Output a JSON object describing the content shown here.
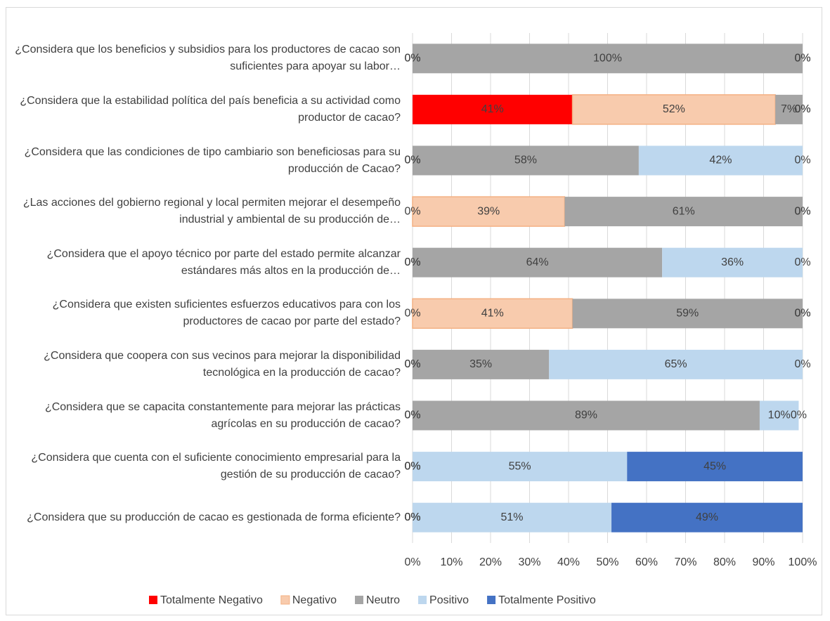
{
  "chart_data": {
    "type": "stacked-bar-horizontal",
    "categories": [
      "¿Considera que los beneficios y subsidios para los productores de cacao son suficientes para apoyar su labor…",
      "¿Considera que la estabilidad política del país beneficia a su actividad como productor de cacao?",
      "¿Considera que las condiciones de tipo cambiario son beneficiosas para su producción de Cacao?",
      "¿Las acciones del gobierno regional y local permiten mejorar el desempeño industrial y ambiental de su producción de…",
      "¿Considera que el apoyo técnico por parte del estado permite alcanzar estándares más altos en la producción de…",
      "¿Considera que existen suficientes esfuerzos educativos para con los productores de cacao por parte del estado?",
      "¿Considera que coopera con sus vecinos para mejorar la disponibilidad tecnológica en la producción de cacao?",
      "¿Considera que se capacita constantemente para mejorar las prácticas agrícolas en su producción de cacao?",
      "¿Considera que cuenta con el suficiente conocimiento empresarial para la gestión de su producción de cacao?",
      "¿Considera que su producción de cacao es gestionada de forma eficiente?"
    ],
    "series": [
      {
        "name": "Totalmente Negativo",
        "color": "#ff0000",
        "values": [
          0,
          41,
          0,
          0,
          0,
          0,
          0,
          0,
          0,
          0
        ],
        "value_labels": [
          "0%",
          "41%",
          "0%",
          "0%",
          "0%",
          "0%",
          "0%",
          "0%",
          "0%",
          "0%"
        ]
      },
      {
        "name": "Negativo",
        "color": "#f8cbad",
        "values": [
          0,
          52,
          0,
          39,
          0,
          41,
          0,
          0,
          0,
          0
        ],
        "value_labels": [
          "0%",
          "52%",
          "0%",
          "39%",
          "0%",
          "41%",
          "0%",
          "0%",
          "0%",
          "0%"
        ]
      },
      {
        "name": "Neutro",
        "color": "#a5a5a5",
        "values": [
          100,
          7,
          58,
          61,
          64,
          59,
          35,
          89,
          0,
          0
        ],
        "value_labels": [
          "100%",
          "7%",
          "58%",
          "61%",
          "64%",
          "59%",
          "35%",
          "89%",
          "0%",
          "0%"
        ]
      },
      {
        "name": "Positivo",
        "color": "#bdd7ee",
        "values": [
          0,
          0,
          42,
          0,
          36,
          0,
          65,
          10,
          55,
          51
        ],
        "value_labels": [
          "0%",
          "0%",
          "42%",
          "0%",
          "36%",
          "0%",
          "65%",
          "10%",
          "55%",
          "51%"
        ]
      },
      {
        "name": "Totalmente Positivo",
        "color": "#4472c4",
        "values": [
          0,
          0,
          0,
          0,
          0,
          0,
          0,
          0,
          45,
          49
        ],
        "value_labels": [
          "0%",
          "0%",
          "0%",
          "0%",
          "0%",
          "0%",
          "0%",
          "0%",
          "45%",
          "49%"
        ]
      }
    ],
    "xlim": [
      0,
      100
    ],
    "xticks": [
      {
        "value": 0,
        "label": "0%"
      },
      {
        "value": 10,
        "label": "10%"
      },
      {
        "value": 20,
        "label": "20%"
      },
      {
        "value": 30,
        "label": "30%"
      },
      {
        "value": 40,
        "label": "40%"
      },
      {
        "value": 50,
        "label": "50%"
      },
      {
        "value": 60,
        "label": "60%"
      },
      {
        "value": 70,
        "label": "70%"
      },
      {
        "value": 80,
        "label": "80%"
      },
      {
        "value": 90,
        "label": "90%"
      },
      {
        "value": 100,
        "label": "100%"
      }
    ],
    "grid": true,
    "legend": "bottom"
  }
}
